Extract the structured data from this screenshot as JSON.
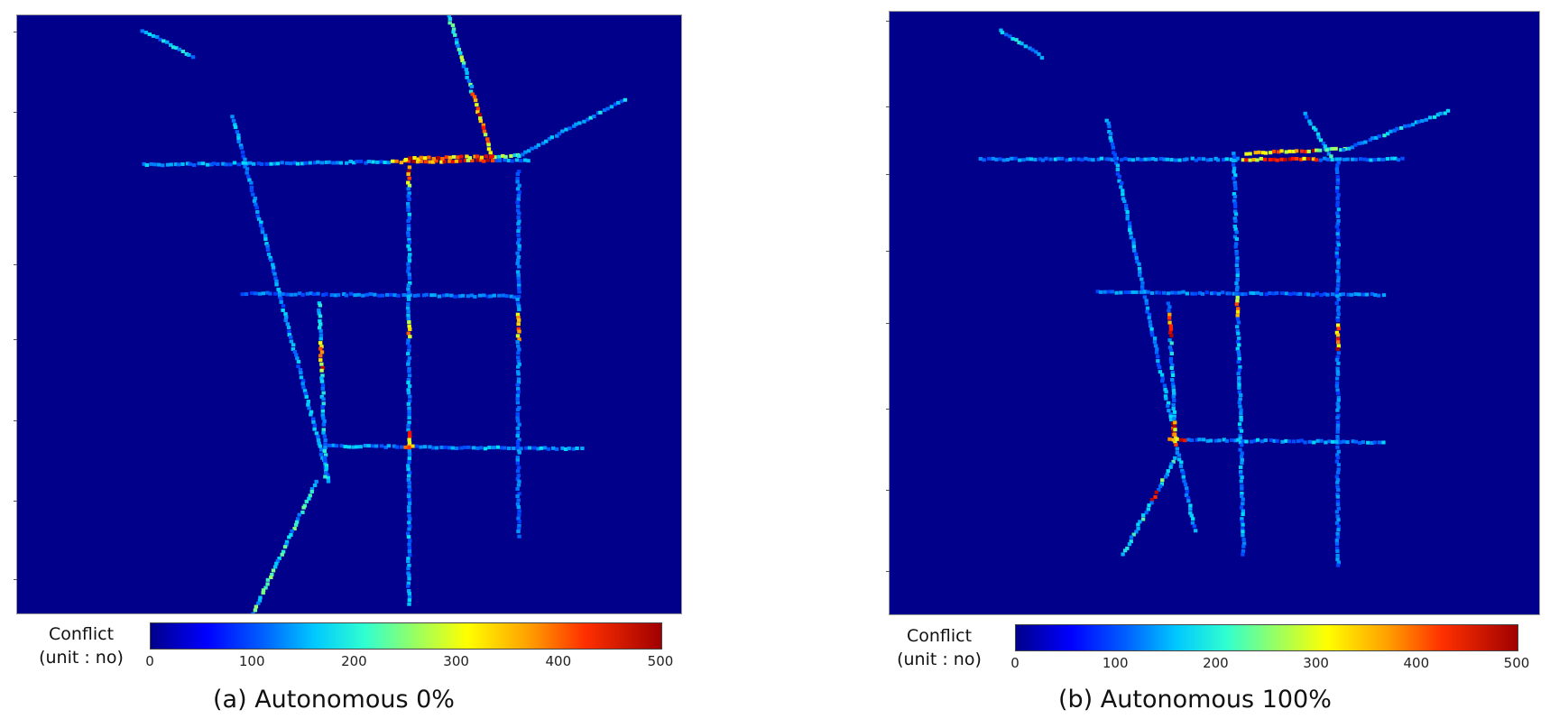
{
  "chart_data": [
    {
      "type": "heatmap",
      "title": "",
      "caption": "(a) Autonomous 0%",
      "colorbar": {
        "label_line1": "Conflict",
        "label_line2": "(unit : no)",
        "ticks": [
          "0",
          "100",
          "200",
          "300",
          "400",
          "500"
        ],
        "range": [
          0,
          500
        ],
        "colormap": "jet"
      }
    },
    {
      "type": "heatmap",
      "title": "",
      "caption": "(b) Autonomous 100%",
      "colorbar": {
        "label_line1": "Conflict",
        "label_line2": "(unit : no)",
        "ticks": [
          "0",
          "100",
          "200",
          "300",
          "400",
          "500"
        ],
        "range": [
          0,
          500
        ],
        "colormap": "jet"
      }
    }
  ]
}
